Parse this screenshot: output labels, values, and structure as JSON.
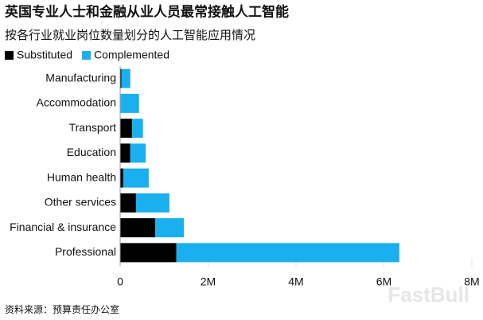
{
  "chart_data": {
    "type": "hbar_stacked",
    "title": "英国专业人士和金融从业人员最常接触人工智能",
    "subtitle": "按各行业就业岗位数量划分的人工智能应用情况",
    "categories": [
      "Manufacturing",
      "Accommodation",
      "Transport",
      "Education",
      "Human health",
      "Other services",
      "Financial & insurance",
      "Professional"
    ],
    "series": [
      {
        "name": "Substituted",
        "color": "#000000",
        "values": [
          30000,
          10000,
          270000,
          230000,
          70000,
          360000,
          800000,
          1280000
        ]
      },
      {
        "name": "Complemented",
        "color": "#1ab0f0",
        "values": [
          200000,
          420000,
          250000,
          350000,
          580000,
          760000,
          650000,
          5070000
        ]
      }
    ],
    "xlim": [
      0,
      8000000
    ],
    "xticks": [
      0,
      {
        "value": 2000000,
        "label": "2M"
      },
      {
        "value": 4000000,
        "label": "4M"
      },
      {
        "value": 6000000,
        "label": "6M"
      },
      {
        "value": 8000000,
        "label": "8M"
      }
    ],
    "legend": "top-left",
    "source": "资料来源：预算责任办公室",
    "watermark": "FastBull"
  }
}
